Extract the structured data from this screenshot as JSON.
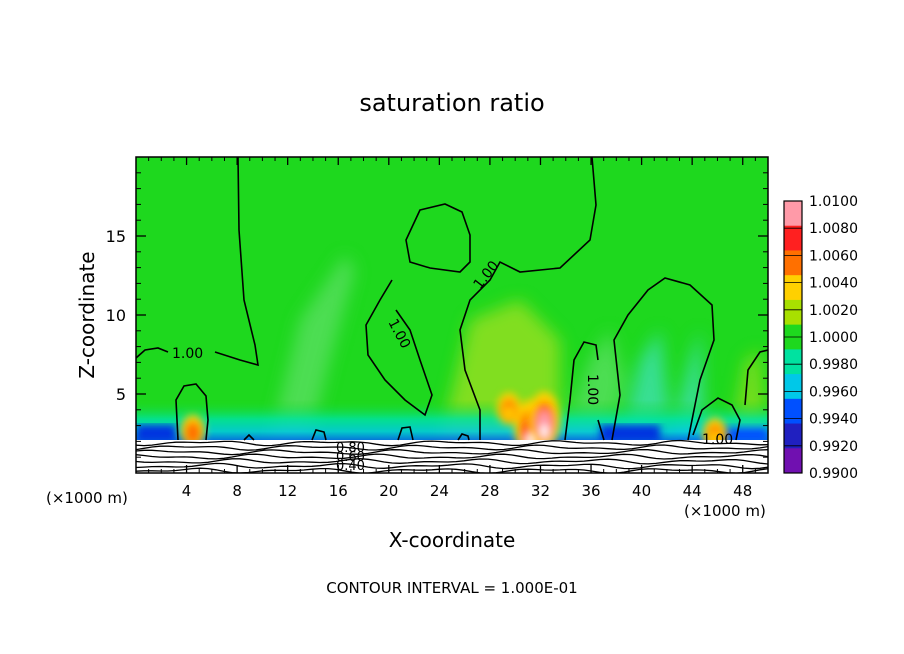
{
  "chart_data": {
    "type": "heatmap",
    "title": "saturation ratio",
    "xlabel": "X-coordinate",
    "ylabel": "Z-coordinate",
    "x_unit": "(×1000 m)",
    "x_unit_right": "(×1000 m)",
    "xlim": [
      0,
      50
    ],
    "ylim": [
      0,
      20
    ],
    "x_ticks": [
      4,
      8,
      12,
      16,
      20,
      24,
      28,
      32,
      36,
      40,
      44,
      48
    ],
    "y_ticks": [
      5,
      10,
      15
    ],
    "footer": "CONTOUR INTERVAL = 1.000E-01",
    "colorbar": {
      "labels": [
        "1.0100",
        "1.0080",
        "1.0060",
        "1.0040",
        "1.0020",
        "1.0000",
        "0.9980",
        "0.9960",
        "0.9940",
        "0.9920",
        "0.9900"
      ],
      "colors": [
        "#ff9aa8",
        "#ff2020",
        "#ff7000",
        "#ffd000",
        "#a8e000",
        "#1ed81e",
        "#00e2a0",
        "#00c8e8",
        "#0050ff",
        "#2020c0",
        "#7010b0"
      ]
    },
    "contour_labels": [
      "1.00",
      "1.00",
      "1.00",
      "1.00",
      "1.00",
      "0.80",
      "0.60",
      "0.40"
    ],
    "background_value": 1.0,
    "hotspots": [
      {
        "x": 4.5,
        "z": 2.8,
        "value": 1.006
      },
      {
        "x": 29.5,
        "z": 4.2,
        "value": 1.005
      },
      {
        "x": 31.2,
        "z": 3.0,
        "value": 1.009
      },
      {
        "x": 32.3,
        "z": 3.5,
        "value": 1.01
      },
      {
        "x": 45.8,
        "z": 2.6,
        "value": 1.005
      }
    ],
    "cold_regions": [
      {
        "x_range": [
          0,
          2
        ],
        "z": 2.5,
        "value": 0.993
      },
      {
        "x_range": [
          38,
          42
        ],
        "z": 2.5,
        "value": 0.993
      }
    ]
  }
}
